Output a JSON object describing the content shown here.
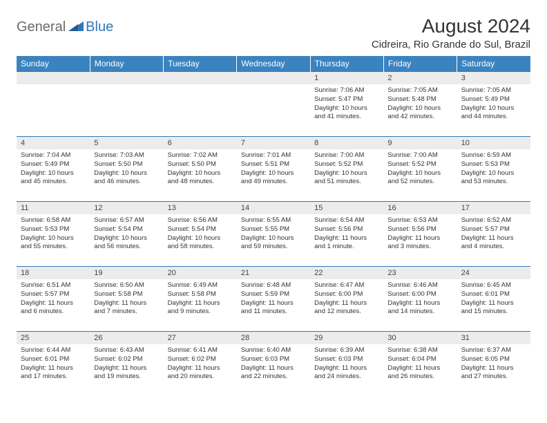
{
  "brand": {
    "part1": "General",
    "part2": "Blue"
  },
  "title": "August 2024",
  "location": "Cidreira, Rio Grande do Sul, Brazil",
  "colors": {
    "header_bg": "#3b83c0",
    "header_text": "#ffffff",
    "daynum_bg": "#ececec",
    "border": "#2f78b7",
    "logo_gray": "#6a6a6a",
    "logo_blue": "#2f78b7",
    "text": "#333333"
  },
  "day_headers": [
    "Sunday",
    "Monday",
    "Tuesday",
    "Wednesday",
    "Thursday",
    "Friday",
    "Saturday"
  ],
  "weeks": [
    [
      {
        "n": "",
        "lines": []
      },
      {
        "n": "",
        "lines": []
      },
      {
        "n": "",
        "lines": []
      },
      {
        "n": "",
        "lines": []
      },
      {
        "n": "1",
        "lines": [
          "Sunrise: 7:06 AM",
          "Sunset: 5:47 PM",
          "Daylight: 10 hours and 41 minutes."
        ]
      },
      {
        "n": "2",
        "lines": [
          "Sunrise: 7:05 AM",
          "Sunset: 5:48 PM",
          "Daylight: 10 hours and 42 minutes."
        ]
      },
      {
        "n": "3",
        "lines": [
          "Sunrise: 7:05 AM",
          "Sunset: 5:49 PM",
          "Daylight: 10 hours and 44 minutes."
        ]
      }
    ],
    [
      {
        "n": "4",
        "lines": [
          "Sunrise: 7:04 AM",
          "Sunset: 5:49 PM",
          "Daylight: 10 hours and 45 minutes."
        ]
      },
      {
        "n": "5",
        "lines": [
          "Sunrise: 7:03 AM",
          "Sunset: 5:50 PM",
          "Daylight: 10 hours and 46 minutes."
        ]
      },
      {
        "n": "6",
        "lines": [
          "Sunrise: 7:02 AM",
          "Sunset: 5:50 PM",
          "Daylight: 10 hours and 48 minutes."
        ]
      },
      {
        "n": "7",
        "lines": [
          "Sunrise: 7:01 AM",
          "Sunset: 5:51 PM",
          "Daylight: 10 hours and 49 minutes."
        ]
      },
      {
        "n": "8",
        "lines": [
          "Sunrise: 7:00 AM",
          "Sunset: 5:52 PM",
          "Daylight: 10 hours and 51 minutes."
        ]
      },
      {
        "n": "9",
        "lines": [
          "Sunrise: 7:00 AM",
          "Sunset: 5:52 PM",
          "Daylight: 10 hours and 52 minutes."
        ]
      },
      {
        "n": "10",
        "lines": [
          "Sunrise: 6:59 AM",
          "Sunset: 5:53 PM",
          "Daylight: 10 hours and 53 minutes."
        ]
      }
    ],
    [
      {
        "n": "11",
        "lines": [
          "Sunrise: 6:58 AM",
          "Sunset: 5:53 PM",
          "Daylight: 10 hours and 55 minutes."
        ]
      },
      {
        "n": "12",
        "lines": [
          "Sunrise: 6:57 AM",
          "Sunset: 5:54 PM",
          "Daylight: 10 hours and 56 minutes."
        ]
      },
      {
        "n": "13",
        "lines": [
          "Sunrise: 6:56 AM",
          "Sunset: 5:54 PM",
          "Daylight: 10 hours and 58 minutes."
        ]
      },
      {
        "n": "14",
        "lines": [
          "Sunrise: 6:55 AM",
          "Sunset: 5:55 PM",
          "Daylight: 10 hours and 59 minutes."
        ]
      },
      {
        "n": "15",
        "lines": [
          "Sunrise: 6:54 AM",
          "Sunset: 5:56 PM",
          "Daylight: 11 hours and 1 minute."
        ]
      },
      {
        "n": "16",
        "lines": [
          "Sunrise: 6:53 AM",
          "Sunset: 5:56 PM",
          "Daylight: 11 hours and 3 minutes."
        ]
      },
      {
        "n": "17",
        "lines": [
          "Sunrise: 6:52 AM",
          "Sunset: 5:57 PM",
          "Daylight: 11 hours and 4 minutes."
        ]
      }
    ],
    [
      {
        "n": "18",
        "lines": [
          "Sunrise: 6:51 AM",
          "Sunset: 5:57 PM",
          "Daylight: 11 hours and 6 minutes."
        ]
      },
      {
        "n": "19",
        "lines": [
          "Sunrise: 6:50 AM",
          "Sunset: 5:58 PM",
          "Daylight: 11 hours and 7 minutes."
        ]
      },
      {
        "n": "20",
        "lines": [
          "Sunrise: 6:49 AM",
          "Sunset: 5:58 PM",
          "Daylight: 11 hours and 9 minutes."
        ]
      },
      {
        "n": "21",
        "lines": [
          "Sunrise: 6:48 AM",
          "Sunset: 5:59 PM",
          "Daylight: 11 hours and 11 minutes."
        ]
      },
      {
        "n": "22",
        "lines": [
          "Sunrise: 6:47 AM",
          "Sunset: 6:00 PM",
          "Daylight: 11 hours and 12 minutes."
        ]
      },
      {
        "n": "23",
        "lines": [
          "Sunrise: 6:46 AM",
          "Sunset: 6:00 PM",
          "Daylight: 11 hours and 14 minutes."
        ]
      },
      {
        "n": "24",
        "lines": [
          "Sunrise: 6:45 AM",
          "Sunset: 6:01 PM",
          "Daylight: 11 hours and 15 minutes."
        ]
      }
    ],
    [
      {
        "n": "25",
        "lines": [
          "Sunrise: 6:44 AM",
          "Sunset: 6:01 PM",
          "Daylight: 11 hours and 17 minutes."
        ]
      },
      {
        "n": "26",
        "lines": [
          "Sunrise: 6:43 AM",
          "Sunset: 6:02 PM",
          "Daylight: 11 hours and 19 minutes."
        ]
      },
      {
        "n": "27",
        "lines": [
          "Sunrise: 6:41 AM",
          "Sunset: 6:02 PM",
          "Daylight: 11 hours and 20 minutes."
        ]
      },
      {
        "n": "28",
        "lines": [
          "Sunrise: 6:40 AM",
          "Sunset: 6:03 PM",
          "Daylight: 11 hours and 22 minutes."
        ]
      },
      {
        "n": "29",
        "lines": [
          "Sunrise: 6:39 AM",
          "Sunset: 6:03 PM",
          "Daylight: 11 hours and 24 minutes."
        ]
      },
      {
        "n": "30",
        "lines": [
          "Sunrise: 6:38 AM",
          "Sunset: 6:04 PM",
          "Daylight: 11 hours and 26 minutes."
        ]
      },
      {
        "n": "31",
        "lines": [
          "Sunrise: 6:37 AM",
          "Sunset: 6:05 PM",
          "Daylight: 11 hours and 27 minutes."
        ]
      }
    ]
  ]
}
